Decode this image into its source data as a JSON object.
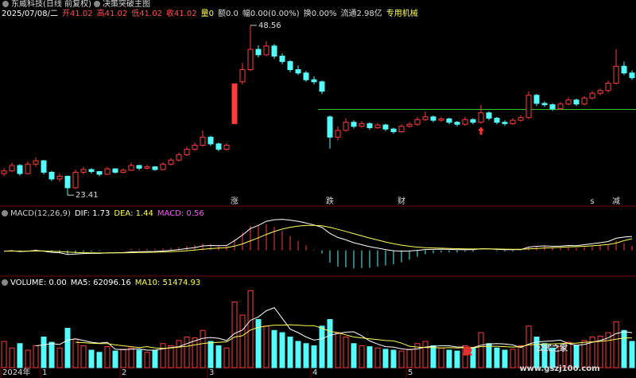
{
  "chart_data": {
    "type": "candlestick",
    "title": "东威科技(日线 前复权)",
    "indicator": "决策突破主图",
    "info": [
      {
        "text": "2025/07/08/二",
        "color": "#ffffff"
      },
      {
        "text": "开41.02",
        "color": "#ff5050"
      },
      {
        "text": "高41.02",
        "color": "#ff5050"
      },
      {
        "text": "低41.02",
        "color": "#ff5050"
      },
      {
        "text": "收41.02",
        "color": "#ff5050"
      },
      {
        "text": "量0",
        "color": "#ffff54"
      },
      {
        "text": "额0.0",
        "color": "#dddddd"
      },
      {
        "text": "幅0.00(0.00%)",
        "color": "#dddddd"
      },
      {
        "text": "换0.00%",
        "color": "#dddddd"
      },
      {
        "text": "流通2.98亿",
        "color": "#dddddd"
      },
      {
        "text": "专用机械",
        "color": "#ffff54"
      }
    ],
    "color_up": "#ff3c3c",
    "color_down": "#54fcfc",
    "solid": 29,
    "ylim": [
      21.9,
      50.9
    ],
    "candles": [
      [
        26.6,
        27.4,
        26.2,
        27.0
      ],
      [
        27.0,
        28.2,
        26.8,
        27.8
      ],
      [
        27.8,
        28.0,
        26.3,
        26.6
      ],
      [
        26.6,
        28.4,
        26.5,
        28.0
      ],
      [
        28.0,
        29.0,
        27.6,
        28.5
      ],
      [
        28.5,
        28.6,
        26.5,
        26.8
      ],
      [
        26.8,
        27.0,
        25.5,
        25.8
      ],
      [
        25.8,
        26.6,
        25.4,
        26.2
      ],
      [
        26.2,
        26.3,
        23.41,
        24.5
      ],
      [
        24.5,
        27.2,
        24.3,
        26.8
      ],
      [
        26.8,
        27.6,
        26.5,
        27.2
      ],
      [
        27.2,
        27.4,
        26.6,
        26.9
      ],
      [
        26.9,
        27.0,
        26.2,
        26.5
      ],
      [
        26.5,
        27.6,
        26.4,
        27.3
      ],
      [
        27.3,
        27.4,
        26.6,
        26.8
      ],
      [
        26.8,
        27.4,
        26.6,
        27.1
      ],
      [
        27.1,
        28.2,
        27.0,
        27.8
      ],
      [
        27.8,
        27.9,
        27.1,
        27.4
      ],
      [
        27.4,
        27.9,
        27.2,
        27.6
      ],
      [
        27.6,
        27.7,
        27.0,
        27.2
      ],
      [
        27.2,
        28.3,
        27.1,
        28.0
      ],
      [
        28.0,
        28.9,
        27.8,
        28.6
      ],
      [
        28.6,
        29.7,
        28.4,
        29.4
      ],
      [
        29.4,
        30.6,
        29.2,
        30.2
      ],
      [
        30.2,
        31.2,
        30.0,
        30.8
      ],
      [
        30.8,
        33.0,
        30.6,
        32.0
      ],
      [
        32.0,
        32.2,
        30.7,
        31.0
      ],
      [
        31.0,
        31.2,
        29.9,
        30.2
      ],
      [
        30.2,
        31.1,
        30.0,
        30.8
      ],
      [
        34.0,
        39.9,
        34.0,
        39.9
      ],
      [
        40.2,
        43.0,
        39.8,
        42.0
      ],
      [
        42.0,
        48.56,
        41.8,
        45.0
      ],
      [
        45.0,
        45.6,
        43.8,
        44.2
      ],
      [
        44.2,
        46.2,
        44.0,
        45.5
      ],
      [
        45.5,
        45.8,
        43.6,
        44.0
      ],
      [
        44.0,
        44.4,
        42.8,
        43.2
      ],
      [
        43.2,
        43.4,
        41.6,
        42.0
      ],
      [
        42.0,
        42.6,
        41.2,
        41.5
      ],
      [
        41.5,
        41.8,
        40.2,
        40.5
      ],
      [
        40.5,
        41.0,
        39.8,
        40.2
      ],
      [
        40.2,
        40.4,
        38.4,
        38.8
      ],
      [
        35.0,
        35.2,
        30.3,
        32.0
      ],
      [
        32.0,
        33.6,
        31.5,
        33.0
      ],
      [
        33.0,
        34.8,
        32.8,
        34.2
      ],
      [
        34.2,
        34.5,
        33.3,
        33.6
      ],
      [
        33.6,
        34.4,
        33.4,
        34.0
      ],
      [
        34.0,
        34.2,
        33.1,
        33.4
      ],
      [
        33.4,
        34.1,
        33.2,
        33.8
      ],
      [
        33.8,
        34.0,
        32.9,
        33.2
      ],
      [
        33.2,
        33.4,
        32.5,
        32.8
      ],
      [
        32.8,
        33.9,
        32.6,
        33.6
      ],
      [
        33.6,
        34.2,
        33.4,
        33.9
      ],
      [
        33.9,
        35.0,
        33.7,
        34.6
      ],
      [
        34.6,
        35.8,
        34.4,
        35.0
      ],
      [
        35.0,
        35.2,
        34.2,
        34.5
      ],
      [
        34.5,
        35.0,
        34.3,
        34.7
      ],
      [
        34.7,
        34.9,
        33.9,
        34.2
      ],
      [
        34.2,
        34.4,
        33.6,
        33.9
      ],
      [
        33.9,
        35.0,
        33.7,
        34.6
      ],
      [
        34.6,
        34.8,
        33.9,
        34.2
      ],
      [
        34.2,
        36.8,
        34.0,
        35.6
      ],
      [
        35.6,
        35.8,
        34.5,
        34.8
      ],
      [
        34.8,
        35.0,
        33.9,
        34.2
      ],
      [
        34.2,
        34.5,
        33.7,
        34.0
      ],
      [
        34.0,
        34.8,
        33.8,
        34.5
      ],
      [
        34.5,
        35.2,
        34.3,
        34.9
      ],
      [
        34.9,
        38.8,
        34.7,
        38.2
      ],
      [
        38.2,
        38.4,
        36.6,
        37.0
      ],
      [
        37.0,
        37.3,
        36.5,
        36.8
      ],
      [
        36.8,
        37.0,
        35.9,
        36.2
      ],
      [
        36.2,
        37.2,
        36.0,
        36.9
      ],
      [
        36.9,
        37.9,
        36.7,
        37.5
      ],
      [
        37.5,
        37.7,
        36.6,
        36.9
      ],
      [
        36.9,
        38.1,
        36.7,
        37.8
      ],
      [
        37.8,
        38.8,
        37.6,
        38.5
      ],
      [
        38.5,
        39.2,
        38.2,
        38.9
      ],
      [
        38.9,
        40.4,
        38.6,
        40.0
      ],
      [
        40.0,
        45.0,
        39.8,
        42.5
      ],
      [
        42.5,
        43.2,
        41.2,
        41.5
      ],
      [
        41.5,
        41.9,
        40.5,
        40.8
      ]
    ],
    "level": {
      "value": 36.1,
      "from": 40,
      "color": "#2fc42f"
    },
    "signals": [
      {
        "text": "涨",
        "at": 29,
        "color": "#ff4040"
      },
      {
        "text": "跌",
        "at": 41,
        "color": "#40e040"
      },
      {
        "text": "财",
        "at": 50,
        "color": "#a0c8ff"
      },
      {
        "text": "s",
        "at": 74,
        "color": "#ff4040"
      },
      {
        "text": "减",
        "at": 77,
        "color": "#c8e060"
      }
    ],
    "arrow": {
      "at": 60,
      "color": "#ff3030"
    },
    "macd": {
      "labels": [
        {
          "text": "MACD(12,26,9)",
          "color": "#cccccc"
        },
        {
          "text": "DIF: 1.73",
          "color": "#ffffff"
        },
        {
          "text": "DEA: 1.44",
          "color": "#ffff54"
        },
        {
          "text": "MACD: 0.56",
          "color": "#ff54ff"
        }
      ],
      "ylim": [
        -3.1,
        4.6
      ],
      "dif": [
        -0.1,
        -0.05,
        -0.15,
        -0.1,
        0.0,
        -0.1,
        -0.25,
        -0.3,
        -0.5,
        -0.45,
        -0.4,
        -0.38,
        -0.38,
        -0.32,
        -0.3,
        -0.28,
        -0.2,
        -0.18,
        -0.15,
        -0.14,
        -0.08,
        0.0,
        0.1,
        0.22,
        0.35,
        0.55,
        0.6,
        0.58,
        0.6,
        1.2,
        1.9,
        2.7,
        3.1,
        3.6,
        3.8,
        3.85,
        3.75,
        3.6,
        3.4,
        3.15,
        2.85,
        2.1,
        1.6,
        1.3,
        0.95,
        0.7,
        0.45,
        0.28,
        0.1,
        -0.05,
        -0.1,
        -0.08,
        0.0,
        0.1,
        0.12,
        0.15,
        0.12,
        0.08,
        0.1,
        0.08,
        0.2,
        0.18,
        0.12,
        0.08,
        0.08,
        0.1,
        0.4,
        0.5,
        0.55,
        0.5,
        0.52,
        0.6,
        0.58,
        0.7,
        0.82,
        0.95,
        1.1,
        1.5,
        1.65,
        1.73
      ],
      "dea": [
        -0.1,
        -0.09,
        -0.1,
        -0.1,
        -0.08,
        -0.08,
        -0.12,
        -0.15,
        -0.22,
        -0.27,
        -0.3,
        -0.31,
        -0.33,
        -0.33,
        -0.32,
        -0.31,
        -0.29,
        -0.27,
        -0.25,
        -0.23,
        -0.2,
        -0.16,
        -0.11,
        -0.05,
        0.03,
        0.13,
        0.22,
        0.29,
        0.35,
        0.52,
        0.8,
        1.18,
        1.56,
        1.97,
        2.34,
        2.64,
        2.86,
        3.01,
        3.09,
        3.1,
        3.05,
        2.86,
        2.61,
        2.35,
        2.07,
        1.8,
        1.53,
        1.28,
        1.04,
        0.82,
        0.64,
        0.5,
        0.4,
        0.34,
        0.3,
        0.27,
        0.24,
        0.21,
        0.19,
        0.17,
        0.18,
        0.18,
        0.17,
        0.15,
        0.14,
        0.13,
        0.18,
        0.24,
        0.3,
        0.34,
        0.37,
        0.42,
        0.45,
        0.5,
        0.56,
        0.64,
        0.73,
        0.9,
        1.2,
        1.44
      ],
      "hist": [
        0,
        0.08,
        -0.1,
        0,
        0.16,
        -0.04,
        -0.26,
        -0.3,
        -0.56,
        -0.36,
        -0.2,
        -0.14,
        -0.1,
        0.02,
        0.04,
        0.06,
        0.18,
        0.18,
        0.2,
        0.18,
        0.24,
        0.32,
        0.42,
        0.54,
        0.64,
        0.84,
        0.76,
        0.58,
        0.5,
        1.36,
        2.2,
        3.04,
        3.08,
        3.26,
        2.92,
        2.42,
        1.78,
        1.18,
        0.62,
        0.1,
        -0.4,
        -1.52,
        -2.02,
        -2.1,
        -2.24,
        -2.2,
        -2.16,
        -2.0,
        -1.88,
        -1.74,
        -1.48,
        -1.16,
        -0.8,
        -0.48,
        -0.36,
        -0.24,
        -0.24,
        -0.26,
        -0.18,
        -0.18,
        0.04,
        0,
        -0.1,
        -0.14,
        -0.12,
        -0.06,
        0.44,
        0.52,
        0.5,
        0.32,
        0.3,
        0.36,
        0.26,
        0.4,
        0.52,
        0.62,
        0.74,
        1.2,
        0.9,
        0.56
      ]
    },
    "volume": {
      "labels": [
        {
          "text": "VOLUME: 0.00",
          "color": "#ffffff"
        },
        {
          "text": "MA5: 62096.16",
          "color": "#ffffff"
        },
        {
          "text": "MA10: 51474.93",
          "color": "#ffff54"
        }
      ],
      "ylim": [
        0,
        200000
      ],
      "values": [
        60000,
        45000,
        55000,
        40000,
        50000,
        70000,
        58000,
        45000,
        90000,
        65000,
        50000,
        40000,
        35000,
        48000,
        38000,
        42000,
        45000,
        40000,
        35000,
        40000,
        55000,
        50000,
        62000,
        70000,
        68000,
        85000,
        60000,
        50000,
        45000,
        150000,
        120000,
        176000,
        110000,
        95000,
        85000,
        80000,
        70000,
        60000,
        55000,
        50000,
        95000,
        110000,
        80000,
        70000,
        55000,
        50000,
        48000,
        45000,
        42000,
        40000,
        38000,
        42000,
        55000,
        60000,
        50000,
        45000,
        40000,
        38000,
        50000,
        45000,
        80000,
        55000,
        45000,
        40000,
        42000,
        50000,
        95000,
        70000,
        55000,
        45000,
        48000,
        58000,
        50000,
        62000,
        70000,
        72000,
        80000,
        105000,
        85000,
        60000
      ],
      "ma5": [
        null,
        null,
        null,
        null,
        50000,
        52000,
        55000,
        53000,
        63000,
        66000,
        62000,
        58000,
        56000,
        58000,
        42000,
        41000,
        42000,
        43000,
        40000,
        40000,
        43000,
        46000,
        48000,
        55000,
        61000,
        67000,
        69000,
        67000,
        62000,
        78000,
        86000,
        108000,
        116000,
        130000,
        137000,
        113000,
        88000,
        80000,
        70000,
        63000,
        66000,
        74000,
        78000,
        81000,
        82000,
        73000,
        61000,
        54000,
        48000,
        47000,
        43000,
        41000,
        43000,
        47000,
        49000,
        50000,
        50000,
        47000,
        47000,
        46000,
        51000,
        54000,
        55000,
        54000,
        52000,
        46000,
        54000,
        59000,
        60000,
        61000,
        63000,
        55000,
        51000,
        53000,
        58000,
        62000,
        68000,
        78000,
        82000,
        80000
      ],
      "ma10": [
        null,
        null,
        null,
        null,
        null,
        null,
        null,
        null,
        null,
        58000,
        57000,
        56000,
        55000,
        55000,
        52000,
        50000,
        48000,
        46000,
        48000,
        45000,
        44000,
        45000,
        47000,
        49000,
        52000,
        55000,
        57000,
        58000,
        59000,
        70000,
        73000,
        86000,
        92000,
        95000,
        97000,
        97000,
        98000,
        97000,
        96000,
        96000,
        90000,
        83000,
        80000,
        75000,
        70000,
        68000,
        66000,
        64000,
        62000,
        61000,
        56000,
        49000,
        47000,
        46000,
        46000,
        45000,
        46000,
        45000,
        46000,
        45000,
        48000,
        49000,
        49000,
        48000,
        47000,
        48000,
        52000,
        53000,
        54000,
        54000,
        55000,
        56000,
        56000,
        58000,
        59000,
        60000,
        62000,
        65000,
        68000,
        68000
      ]
    },
    "xlabels": [
      {
        "text": "2024年",
        "at": 0
      },
      {
        "text": "1",
        "at": 5
      },
      {
        "text": "2",
        "at": 15
      },
      {
        "text": "3",
        "at": 26
      },
      {
        "text": "4",
        "at": 39
      },
      {
        "text": "5",
        "at": 51
      }
    ],
    "watermark": [
      "股",
      "公式之家",
      "www.gszj100.com"
    ]
  }
}
